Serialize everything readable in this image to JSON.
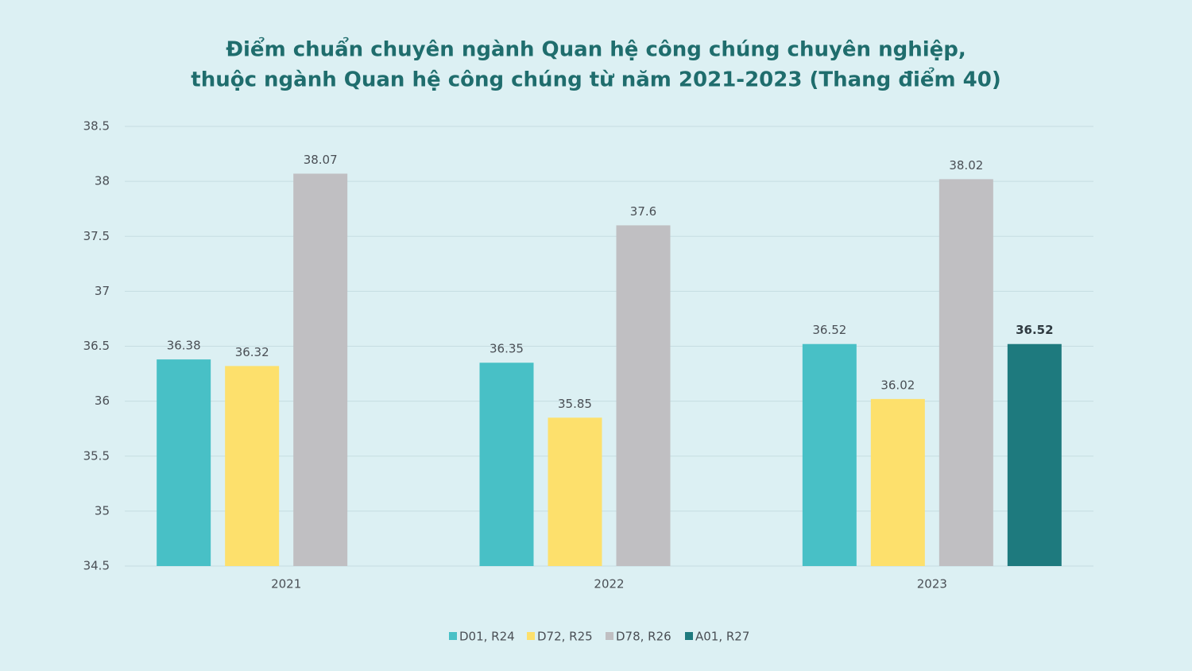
{
  "chart_data": {
    "type": "bar",
    "title": [
      "Điểm chuẩn chuyên ngành Quan hệ công chúng chuyên nghiệp,",
      "thuộc ngành Quan hệ công chúng từ năm 2021-2023 (Thang điểm 40)"
    ],
    "categories": [
      "2021",
      "2022",
      "2023"
    ],
    "series": [
      {
        "name": "D01, R24",
        "color": "#48c0c6",
        "values": [
          36.38,
          36.35,
          36.52
        ]
      },
      {
        "name": "D72, R25",
        "color": "#fde06c",
        "values": [
          36.32,
          35.85,
          36.02
        ]
      },
      {
        "name": "D78, R26",
        "color": "#c0bfc2",
        "values": [
          38.07,
          37.6,
          38.02
        ]
      },
      {
        "name": "A01, R27",
        "color": "#1e7a7e",
        "values": [
          null,
          null,
          36.52
        ]
      }
    ],
    "ylim": [
      34.5,
      38.5
    ],
    "yticks": [
      34.5,
      35,
      35.5,
      36,
      36.5,
      37,
      37.5,
      38,
      38.5
    ],
    "grid": true,
    "legend": "bottom"
  }
}
